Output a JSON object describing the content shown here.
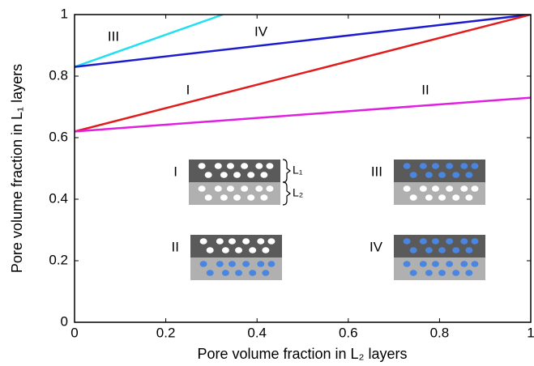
{
  "chart_data": {
    "type": "line",
    "xlabel": "Pore volume fraction in L₂ layers",
    "ylabel": "Pore volume fraction in L₁ layers",
    "xlim": [
      0,
      1
    ],
    "ylim": [
      0,
      1
    ],
    "xticks": [
      0,
      0.2,
      0.4,
      0.6,
      0.8,
      1
    ],
    "yticks": [
      0,
      0.2,
      0.4,
      0.6,
      0.8,
      1
    ],
    "grid": false,
    "series": [
      {
        "name": "III",
        "color": "#22e0f0",
        "x": [
          0,
          0.325
        ],
        "values": [
          0.83,
          1
        ]
      },
      {
        "name": "IV",
        "color": "#1c1ccc",
        "x": [
          0,
          1
        ],
        "values": [
          0.83,
          1
        ]
      },
      {
        "name": "I",
        "color": "#e01c1c",
        "x": [
          0,
          1
        ],
        "values": [
          0.62,
          1
        ]
      },
      {
        "name": "II",
        "color": "#e020e0",
        "x": [
          0,
          1
        ],
        "values": [
          0.62,
          0.73
        ]
      }
    ],
    "inset": {
      "panels": [
        {
          "label": "I",
          "top_color": "#ffffff",
          "bottom_color": "#ffffff"
        },
        {
          "label": "III",
          "top_color": "#4a86e0",
          "bottom_color": "#ffffff"
        },
        {
          "label": "II",
          "top_color": "#ffffff",
          "bottom_color": "#4a86e0"
        },
        {
          "label": "IV",
          "top_color": "#4a86e0",
          "bottom_color": "#4a86e0"
        }
      ],
      "layer_labels": [
        "L₁",
        "L₂"
      ]
    }
  }
}
